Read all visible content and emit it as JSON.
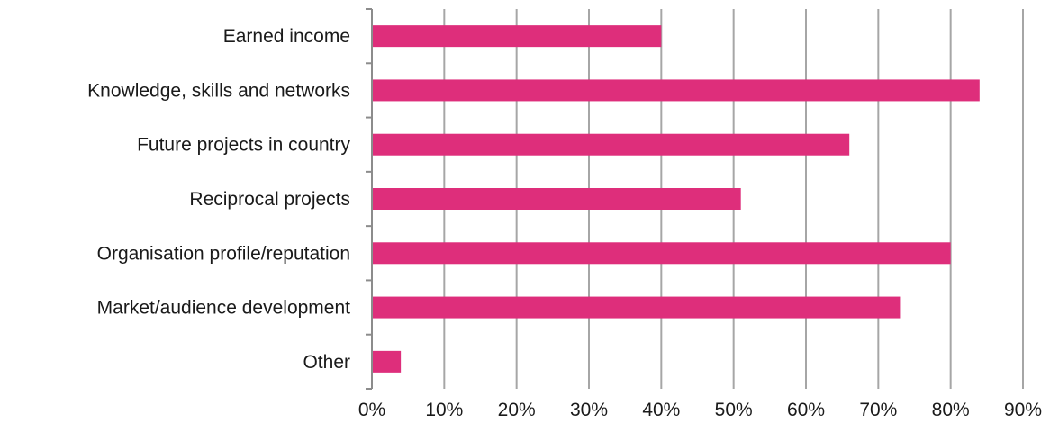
{
  "chart_data": {
    "type": "bar",
    "orientation": "horizontal",
    "categories": [
      "Earned income",
      "Knowledge, skills and networks",
      "Future projects in country",
      "Reciprocal projects",
      "Organisation profile/reputation",
      "Market/audience development",
      "Other"
    ],
    "values": [
      40,
      84,
      66,
      51,
      80,
      73,
      4
    ],
    "xlim": [
      0,
      90
    ],
    "x_ticks": [
      0,
      10,
      20,
      30,
      40,
      50,
      60,
      70,
      80,
      90
    ],
    "x_tick_labels": [
      "0%",
      "10%",
      "20%",
      "30%",
      "40%",
      "50%",
      "60%",
      "70%",
      "80%",
      "90%"
    ],
    "grid": true,
    "legend": "none",
    "bar_color": "#de2e7b"
  }
}
